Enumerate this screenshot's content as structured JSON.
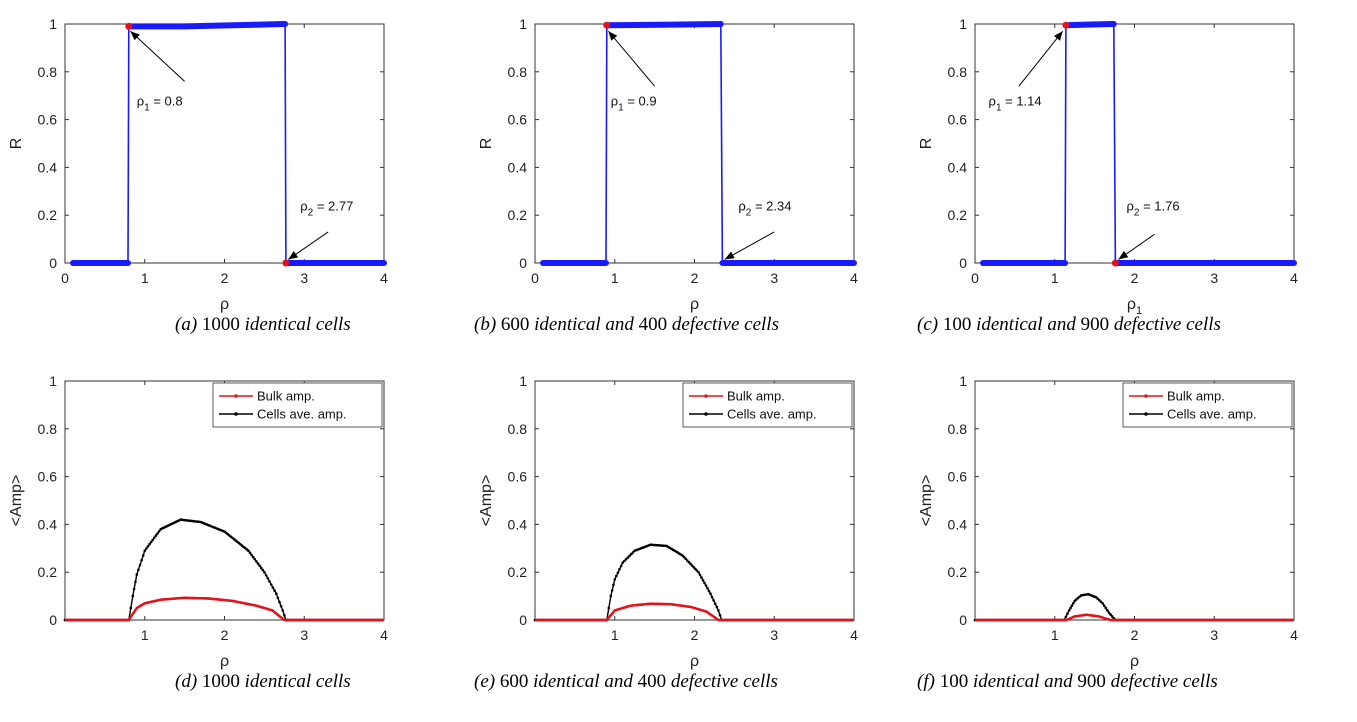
{
  "chart_data": [
    {
      "id": "a",
      "type": "line",
      "xlabel": "ρ",
      "ylabel": "R",
      "xlim": [
        0,
        4
      ],
      "ylim": [
        0,
        1
      ],
      "xticks": [
        "0",
        "1",
        "2",
        "3",
        "4"
      ],
      "yticks": [
        "0",
        "0.2",
        "0.4",
        "0.6",
        "0.8",
        "1"
      ],
      "grid": false,
      "series": [
        {
          "color": "#1a1aff",
          "x": [
            0.1,
            0.78,
            0.79,
            0.8,
            1.5,
            2.75,
            2.76,
            2.77,
            3.5,
            4.0
          ],
          "y": [
            0,
            0,
            0,
            0.99,
            0.99,
            1.0,
            1.0,
            0,
            0,
            0
          ]
        }
      ],
      "markers": [
        {
          "x": 0.8,
          "y": 0.99
        },
        {
          "x": 2.77,
          "y": 0
        }
      ],
      "annotations": [
        {
          "sym": "ρ",
          "sub": "1",
          "rest": " = 0.8",
          "x": 0.9,
          "y": 0.66,
          "ax": 1.5,
          "ay": 0.76,
          "hx": 0.82,
          "hy": 0.97
        },
        {
          "sym": "ρ",
          "sub": "2",
          "rest": " = 2.77",
          "x": 2.95,
          "y": 0.22,
          "ax": 3.3,
          "ay": 0.13,
          "hx": 2.8,
          "hy": 0.015
        }
      ],
      "caption": {
        "label": "(a)",
        "parts": [
          {
            "t": "1000",
            "s": "roman"
          },
          {
            "t": " identical cells",
            "s": "italic"
          }
        ]
      }
    },
    {
      "id": "b",
      "type": "line",
      "xlabel": "ρ",
      "ylabel": "R",
      "xlim": [
        0,
        4
      ],
      "ylim": [
        0,
        1
      ],
      "xticks": [
        "0",
        "1",
        "2",
        "3",
        "4"
      ],
      "yticks": [
        "0",
        "0.2",
        "0.4",
        "0.6",
        "0.8",
        "1"
      ],
      "grid": false,
      "series": [
        {
          "color": "#1a1aff",
          "x": [
            0.1,
            0.88,
            0.89,
            0.9,
            1.6,
            2.33,
            2.34,
            2.35,
            3.2,
            4.0
          ],
          "y": [
            0,
            0,
            0,
            0.995,
            0.997,
            1.0,
            0.5,
            0,
            0,
            0
          ]
        }
      ],
      "markers": [
        {
          "x": 0.9,
          "y": 0.995
        }
      ],
      "annotations": [
        {
          "sym": "ρ",
          "sub": "1",
          "rest": " = 0.9",
          "x": 0.95,
          "y": 0.66,
          "ax": 1.5,
          "ay": 0.74,
          "hx": 0.92,
          "hy": 0.97
        },
        {
          "sym": "ρ",
          "sub": "2",
          "rest": " = 2.34",
          "x": 2.55,
          "y": 0.22,
          "ax": 3.0,
          "ay": 0.13,
          "hx": 2.38,
          "hy": 0.015
        }
      ],
      "caption": {
        "label": "(b)",
        "parts": [
          {
            "t": "600",
            "s": "roman"
          },
          {
            "t": " identical and ",
            "s": "italic"
          },
          {
            "t": "400",
            "s": "roman"
          },
          {
            "t": " defective cells",
            "s": "italic"
          }
        ]
      }
    },
    {
      "id": "c",
      "type": "line",
      "xlabel": "ρ",
      "xlabel_sub": "1",
      "ylabel": "R",
      "xlim": [
        0,
        4
      ],
      "ylim": [
        0,
        1
      ],
      "xticks": [
        "0",
        "1",
        "2",
        "3",
        "4"
      ],
      "yticks": [
        "0",
        "0.2",
        "0.4",
        "0.6",
        "0.8",
        "1"
      ],
      "grid": false,
      "series": [
        {
          "color": "#1a1aff",
          "x": [
            0.1,
            1.12,
            1.13,
            1.14,
            1.45,
            1.73,
            1.74,
            1.76,
            2.8,
            4.0
          ],
          "y": [
            0,
            0,
            0,
            0.995,
            0.998,
            1.0,
            1.0,
            0,
            0,
            0
          ]
        }
      ],
      "markers": [
        {
          "x": 1.14,
          "y": 0.995
        },
        {
          "x": 1.76,
          "y": 0
        }
      ],
      "annotations": [
        {
          "sym": "ρ",
          "sub": "1",
          "rest": " = 1.14",
          "x": 0.17,
          "y": 0.66,
          "ax": 0.55,
          "ay": 0.74,
          "hx": 1.1,
          "hy": 0.97
        },
        {
          "sym": "ρ",
          "sub": "2",
          "rest": " = 1.76",
          "x": 1.9,
          "y": 0.22,
          "ax": 2.25,
          "ay": 0.12,
          "hx": 1.8,
          "hy": 0.015
        }
      ],
      "caption": {
        "label": "(c)",
        "parts": [
          {
            "t": "100",
            "s": "roman"
          },
          {
            "t": " identical and ",
            "s": "italic"
          },
          {
            "t": "900",
            "s": "roman"
          },
          {
            "t": " defective cells",
            "s": "italic"
          }
        ]
      }
    },
    {
      "id": "d",
      "type": "line",
      "xlabel": "ρ",
      "ylabel": "<Amp>",
      "xlim": [
        0,
        4
      ],
      "ylim": [
        0,
        1
      ],
      "xticks": [
        "1",
        "2",
        "3",
        "4"
      ],
      "yticks": [
        "0",
        "0.2",
        "0.4",
        "0.6",
        "0.8",
        "1"
      ],
      "grid": false,
      "legend": {
        "position": "top-right",
        "entries": [
          "Bulk amp.",
          "Cells ave. amp."
        ]
      },
      "series": [
        {
          "name": "Bulk amp.",
          "color": "#e0141a",
          "x": [
            0.0,
            0.8,
            0.9,
            1.0,
            1.2,
            1.5,
            1.8,
            2.1,
            2.4,
            2.6,
            2.75,
            4.0
          ],
          "y": [
            0,
            0,
            0.05,
            0.07,
            0.085,
            0.093,
            0.09,
            0.08,
            0.06,
            0.04,
            0,
            0
          ]
        },
        {
          "name": "Cells ave. amp.",
          "color": "#000000",
          "x": [
            0.0,
            0.8,
            0.85,
            0.9,
            1.0,
            1.2,
            1.45,
            1.7,
            2.0,
            2.3,
            2.5,
            2.65,
            2.73,
            2.77,
            4.0
          ],
          "y": [
            0,
            0,
            0.1,
            0.19,
            0.29,
            0.38,
            0.42,
            0.41,
            0.37,
            0.29,
            0.2,
            0.11,
            0.04,
            0,
            0
          ]
        }
      ],
      "caption": {
        "label": "(d)",
        "parts": [
          {
            "t": "1000",
            "s": "roman"
          },
          {
            "t": " identical cells",
            "s": "italic"
          }
        ]
      }
    },
    {
      "id": "e",
      "type": "line",
      "xlabel": "ρ",
      "ylabel": "<Amp>",
      "xlim": [
        0,
        4
      ],
      "ylim": [
        0,
        1
      ],
      "xticks": [
        "1",
        "2",
        "3",
        "4"
      ],
      "yticks": [
        "0",
        "0.2",
        "0.4",
        "0.6",
        "0.8",
        "1"
      ],
      "grid": false,
      "legend": {
        "position": "top-right",
        "entries": [
          "Bulk amp.",
          "Cells ave. amp."
        ]
      },
      "series": [
        {
          "name": "Bulk amp.",
          "color": "#e0141a",
          "x": [
            0.0,
            0.9,
            1.0,
            1.2,
            1.45,
            1.7,
            1.95,
            2.15,
            2.3,
            4.0
          ],
          "y": [
            0,
            0,
            0.04,
            0.06,
            0.068,
            0.066,
            0.055,
            0.035,
            0,
            0
          ]
        },
        {
          "name": "Cells ave. amp.",
          "color": "#000000",
          "x": [
            0.0,
            0.9,
            0.95,
            1.0,
            1.1,
            1.25,
            1.45,
            1.65,
            1.85,
            2.05,
            2.2,
            2.3,
            2.34,
            4.0
          ],
          "y": [
            0,
            0,
            0.1,
            0.17,
            0.24,
            0.29,
            0.315,
            0.31,
            0.27,
            0.2,
            0.11,
            0.04,
            0,
            0
          ]
        }
      ],
      "caption": {
        "label": "(e)",
        "parts": [
          {
            "t": "600",
            "s": "roman"
          },
          {
            "t": " identical and ",
            "s": "italic"
          },
          {
            "t": "400",
            "s": "roman"
          },
          {
            "t": " defective cells",
            "s": "italic"
          }
        ]
      }
    },
    {
      "id": "f",
      "type": "line",
      "xlabel": "ρ",
      "ylabel": "<Amp>",
      "xlim": [
        0,
        4
      ],
      "ylim": [
        0,
        1
      ],
      "xticks": [
        "1",
        "2",
        "3",
        "4"
      ],
      "yticks": [
        "0",
        "0.2",
        "0.4",
        "0.6",
        "0.8",
        "1"
      ],
      "grid": false,
      "legend": {
        "position": "top-right",
        "entries": [
          "Bulk amp.",
          "Cells ave. amp."
        ]
      },
      "series": [
        {
          "name": "Bulk amp.",
          "color": "#e0141a",
          "x": [
            0.0,
            1.15,
            1.25,
            1.4,
            1.55,
            1.7,
            4.0
          ],
          "y": [
            0,
            0,
            0.015,
            0.022,
            0.015,
            0,
            0
          ]
        },
        {
          "name": "Cells ave. amp.",
          "color": "#000000",
          "x": [
            0.0,
            1.12,
            1.18,
            1.25,
            1.33,
            1.42,
            1.52,
            1.6,
            1.68,
            1.76,
            4.0
          ],
          "y": [
            0,
            0,
            0.04,
            0.08,
            0.103,
            0.108,
            0.095,
            0.07,
            0.03,
            0,
            0
          ]
        }
      ],
      "caption": {
        "label": "(f)",
        "parts": [
          {
            "t": "100",
            "s": "roman"
          },
          {
            "t": " identical and ",
            "s": "italic"
          },
          {
            "t": "900",
            "s": "roman"
          },
          {
            "t": " defective cells",
            "s": "italic"
          }
        ]
      }
    }
  ]
}
